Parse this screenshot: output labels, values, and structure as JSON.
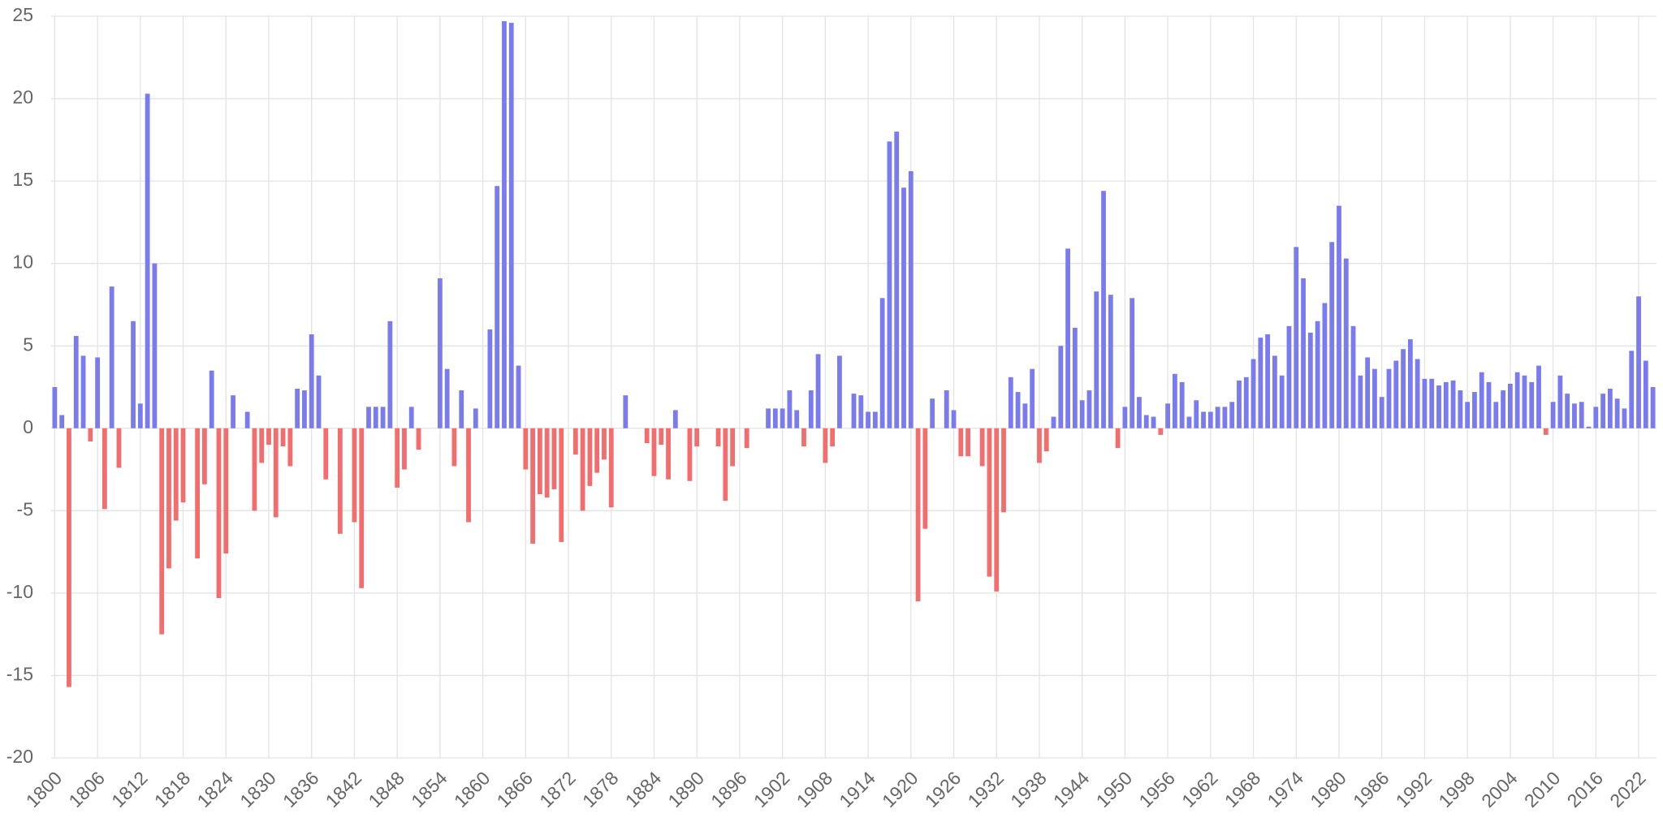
{
  "chart_data": {
    "type": "bar",
    "categories": [
      "1800",
      null,
      null,
      null,
      null,
      null,
      "1806",
      null,
      null,
      null,
      null,
      null,
      "1812",
      null,
      null,
      null,
      null,
      null,
      "1818",
      null,
      null,
      null,
      null,
      null,
      "1824",
      null,
      null,
      null,
      null,
      null,
      "1830",
      null,
      null,
      null,
      null,
      null,
      "1836",
      null,
      null,
      null,
      null,
      null,
      "1842",
      null,
      null,
      null,
      null,
      null,
      "1848",
      null,
      null,
      null,
      null,
      null,
      "1854",
      null,
      null,
      null,
      null,
      null,
      "1860",
      null,
      null,
      null,
      null,
      null,
      "1866",
      null,
      null,
      null,
      null,
      null,
      "1872",
      null,
      null,
      null,
      null,
      null,
      "1878",
      null,
      null,
      null,
      null,
      null,
      "1884",
      null,
      null,
      null,
      null,
      null,
      "1890",
      null,
      null,
      null,
      null,
      null,
      "1896",
      null,
      null,
      null,
      null,
      null,
      "1902",
      null,
      null,
      null,
      null,
      null,
      "1908",
      null,
      null,
      null,
      null,
      null,
      "1914",
      null,
      null,
      null,
      null,
      null,
      "1920",
      null,
      null,
      null,
      null,
      null,
      "1926",
      null,
      null,
      null,
      null,
      null,
      "1932",
      null,
      null,
      null,
      null,
      null,
      "1938",
      null,
      null,
      null,
      null,
      null,
      "1944",
      null,
      null,
      null,
      null,
      null,
      "1950",
      null,
      null,
      null,
      null,
      null,
      "1956",
      null,
      null,
      null,
      null,
      null,
      "1962",
      null,
      null,
      null,
      null,
      null,
      "1968",
      null,
      null,
      null,
      null,
      null,
      "1974",
      null,
      null,
      null,
      null,
      null,
      "1980",
      null,
      null,
      null,
      null,
      null,
      "1986",
      null,
      null,
      null,
      null,
      null,
      "1992",
      null,
      null,
      null,
      null,
      null,
      "1998",
      null,
      null,
      null,
      null,
      null,
      "2004",
      null,
      null,
      null,
      null,
      null,
      "2010",
      null,
      null,
      null,
      null,
      null,
      "2016",
      null,
      null,
      null,
      null,
      null,
      "2022",
      null,
      null
    ],
    "values": [
      2.5,
      0.8,
      -15.7,
      5.6,
      4.4,
      -0.8,
      4.3,
      -4.9,
      8.6,
      -2.4,
      0,
      6.5,
      1.5,
      20.3,
      10.0,
      -12.5,
      -8.5,
      -5.6,
      -4.5,
      0,
      -7.9,
      -3.4,
      3.5,
      -10.3,
      -7.6,
      2.0,
      0,
      1.0,
      -5.0,
      -2.1,
      -1.0,
      -5.4,
      -1.1,
      -2.3,
      2.4,
      2.3,
      5.7,
      3.2,
      -3.1,
      0,
      -6.4,
      0,
      -5.7,
      -9.7,
      1.3,
      1.3,
      1.3,
      6.5,
      -3.6,
      -2.5,
      1.3,
      -1.3,
      0,
      0,
      9.1,
      3.6,
      -2.3,
      2.3,
      -5.7,
      1.2,
      0,
      6.0,
      14.7,
      24.7,
      24.6,
      3.8,
      -2.5,
      -7.0,
      -4.0,
      -4.2,
      -3.7,
      -6.9,
      0,
      -1.6,
      -5.0,
      -3.5,
      -2.7,
      -1.9,
      -4.8,
      0,
      2.0,
      0,
      0,
      -0.9,
      -2.9,
      -1.0,
      -3.1,
      1.1,
      0,
      -3.2,
      -1.1,
      0,
      0,
      -1.1,
      -4.4,
      -2.3,
      0,
      -1.2,
      0,
      0,
      1.2,
      1.2,
      1.2,
      2.3,
      1.1,
      -1.1,
      2.3,
      4.5,
      -2.1,
      -1.1,
      4.4,
      0,
      2.1,
      2.0,
      1.0,
      1.0,
      7.9,
      17.4,
      18.0,
      14.6,
      15.6,
      -10.5,
      -6.1,
      1.8,
      0,
      2.3,
      1.1,
      -1.7,
      -1.7,
      0,
      -2.3,
      -9.0,
      -9.9,
      -5.1,
      3.1,
      2.2,
      1.5,
      3.6,
      -2.1,
      -1.4,
      0.7,
      5.0,
      10.9,
      6.1,
      1.7,
      2.3,
      8.3,
      14.4,
      8.1,
      -1.2,
      1.3,
      7.9,
      1.9,
      0.8,
      0.7,
      -0.4,
      1.5,
      3.3,
      2.8,
      0.7,
      1.7,
      1.0,
      1.0,
      1.3,
      1.3,
      1.6,
      2.9,
      3.1,
      4.2,
      5.5,
      5.7,
      4.4,
      3.2,
      6.2,
      11.0,
      9.1,
      5.8,
      6.5,
      7.6,
      11.3,
      13.5,
      10.3,
      6.2,
      3.2,
      4.3,
      3.6,
      1.9,
      3.6,
      4.1,
      4.8,
      5.4,
      4.2,
      3.0,
      3.0,
      2.6,
      2.8,
      2.9,
      2.3,
      1.6,
      2.2,
      3.4,
      2.8,
      1.6,
      2.3,
      2.7,
      3.4,
      3.2,
      2.8,
      3.8,
      -0.4,
      1.6,
      3.2,
      2.1,
      1.5,
      1.6,
      0.1,
      1.3,
      2.1,
      2.4,
      1.8,
      1.2,
      4.7,
      8.0,
      4.1,
      2.5
    ],
    "positive_color": "#7b7bf0",
    "negative_color": "#f26e6e",
    "ylim": [
      -20,
      25
    ],
    "yticks": [
      -20,
      -15,
      -10,
      -5,
      0,
      5,
      10,
      15,
      20,
      25
    ],
    "grid": true
  }
}
